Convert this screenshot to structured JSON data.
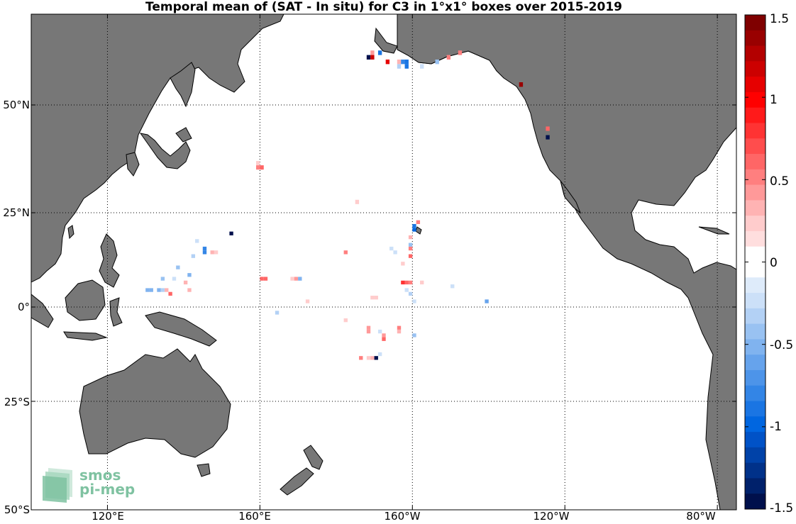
{
  "title": "Temporal mean of (SAT - In situ) for C3 in 1°x1° boxes over 2015-2019",
  "lat_labels": [
    "50°N",
    "25°N",
    "0°",
    "25°S",
    "50°S"
  ],
  "lon_labels": [
    "120°E",
    "160°E",
    "160°W",
    "120°W",
    "80°W"
  ],
  "colorbar": {
    "ticks": [
      "1.5",
      "1",
      "0.5",
      "0",
      "-0.5",
      "-1",
      "-1.5"
    ],
    "range": [
      -1.5,
      1.5
    ],
    "colors_pos": [
      "#ffffff",
      "#ffdede",
      "#ffcccc",
      "#ffb3b3",
      "#ff9999",
      "#ff7f7f",
      "#ff6666",
      "#ff4d4d",
      "#ff3333",
      "#ff1a1a",
      "#ff0000",
      "#e60000",
      "#cc0000",
      "#b30000",
      "#990000",
      "#7f0000"
    ],
    "colors_neg": [
      "#ffffff",
      "#deebfa",
      "#cce0f8",
      "#b3d1f5",
      "#99c2f2",
      "#80b3ef",
      "#66a3ec",
      "#4d94e9",
      "#3385e6",
      "#1a75e3",
      "#0066e0",
      "#0052c7",
      "#0042a8",
      "#003189",
      "#00216b",
      "#00104c"
    ]
  },
  "map": {
    "land_color": "#777777",
    "ocean_color": "#ffffff",
    "grid": true
  },
  "logo": {
    "line1": "smos",
    "line2": "pi-mep"
  },
  "cells": [
    {
      "lon": -170.5,
      "lat": 61.5,
      "v": 0.4
    },
    {
      "lon": -168.5,
      "lat": 61.5,
      "v": -0.9
    },
    {
      "lon": -171.5,
      "lat": 60.5,
      "v": -1.5
    },
    {
      "lon": -170.5,
      "lat": 60.5,
      "v": 1.2
    },
    {
      "lon": -166.5,
      "lat": 59.5,
      "v": 1.1
    },
    {
      "lon": -163.5,
      "lat": 59.5,
      "v": 0.3
    },
    {
      "lon": -162.5,
      "lat": 59.5,
      "v": -0.8
    },
    {
      "lon": -161.5,
      "lat": 59.5,
      "v": -0.9
    },
    {
      "lon": -163.5,
      "lat": 58.5,
      "v": -0.3
    },
    {
      "lon": -161.5,
      "lat": 58.5,
      "v": -0.9
    },
    {
      "lon": -157.5,
      "lat": 58.5,
      "v": -0.2
    },
    {
      "lon": -153.5,
      "lat": 59.5,
      "v": -0.4
    },
    {
      "lon": -150.5,
      "lat": 60.5,
      "v": 0.5
    },
    {
      "lon": -147.5,
      "lat": 61.5,
      "v": 0.5
    },
    {
      "lon": -131.5,
      "lat": 54.5,
      "v": 1.4
    },
    {
      "lon": -124.5,
      "lat": 44.5,
      "v": 0.6
    },
    {
      "lon": -124.5,
      "lat": 42.5,
      "v": -1.5
    },
    {
      "lon": 159.5,
      "lat": 36.5,
      "v": 0.2
    },
    {
      "lon": 159.5,
      "lat": 35.5,
      "v": 0.5
    },
    {
      "lon": 160.5,
      "lat": 35.5,
      "v": 0.6
    },
    {
      "lon": -174.5,
      "lat": 27.5,
      "v": 0.2
    },
    {
      "lon": -158.5,
      "lat": 22.5,
      "v": 0.5
    },
    {
      "lon": -159.5,
      "lat": 21.5,
      "v": -0.9
    },
    {
      "lon": -159.5,
      "lat": 20.5,
      "v": -1.0
    },
    {
      "lon": -160.5,
      "lat": 18.5,
      "v": 0.3
    },
    {
      "lon": -160.5,
      "lat": 16.5,
      "v": -0.4
    },
    {
      "lon": -160.5,
      "lat": 15.5,
      "v": 0.5
    },
    {
      "lon": -160.5,
      "lat": 13.5,
      "v": 0.6
    },
    {
      "lon": -162.5,
      "lat": 11.5,
      "v": 0.2
    },
    {
      "lon": -165.5,
      "lat": 15.5,
      "v": -0.2
    },
    {
      "lon": -164.5,
      "lat": 14.5,
      "v": -0.2
    },
    {
      "lon": -177.5,
      "lat": 14.5,
      "v": 0.5
    },
    {
      "lon": -172.5,
      "lat": 14.5,
      "v": 0.0
    },
    {
      "lon": 152.5,
      "lat": 19.5,
      "v": -1.5
    },
    {
      "lon": 147.5,
      "lat": 14.5,
      "v": 0.3
    },
    {
      "lon": 148.5,
      "lat": 14.5,
      "v": 0.2
    },
    {
      "lon": 143.5,
      "lat": 17.5,
      "v": -0.2
    },
    {
      "lon": 145.5,
      "lat": 15.5,
      "v": -0.8
    },
    {
      "lon": 145.5,
      "lat": 14.5,
      "v": -0.8
    },
    {
      "lon": 142.5,
      "lat": 13.5,
      "v": -0.3
    },
    {
      "lon": 138.5,
      "lat": 10.5,
      "v": -0.4
    },
    {
      "lon": 141.5,
      "lat": 8.5,
      "v": -0.5
    },
    {
      "lon": 134.5,
      "lat": 7.5,
      "v": -0.4
    },
    {
      "lon": 137.5,
      "lat": 7.5,
      "v": -0.2
    },
    {
      "lon": 140.5,
      "lat": 6.5,
      "v": 0.3
    },
    {
      "lon": 130.5,
      "lat": 4.5,
      "v": -0.5
    },
    {
      "lon": 131.5,
      "lat": 4.5,
      "v": -0.5
    },
    {
      "lon": 133.5,
      "lat": 4.5,
      "v": -0.5
    },
    {
      "lon": 134.5,
      "lat": 4.5,
      "v": -0.3
    },
    {
      "lon": 135.5,
      "lat": 4.5,
      "v": 0.3
    },
    {
      "lon": 136.5,
      "lat": 3.5,
      "v": 0.6
    },
    {
      "lon": 141.5,
      "lat": 4.5,
      "v": 0.3
    },
    {
      "lon": 161.5,
      "lat": 7.5,
      "v": 0.6
    },
    {
      "lon": 160.5,
      "lat": 7.5,
      "v": 0.6
    },
    {
      "lon": 168.5,
      "lat": 7.5,
      "v": 0.2
    },
    {
      "lon": 169.5,
      "lat": 7.5,
      "v": 0.4
    },
    {
      "lon": 170.5,
      "lat": 7.5,
      "v": -0.5
    },
    {
      "lon": -161.5,
      "lat": 6.5,
      "v": 0.6
    },
    {
      "lon": -162.5,
      "lat": 6.5,
      "v": 0.8
    },
    {
      "lon": -160.5,
      "lat": 6.5,
      "v": 0.5
    },
    {
      "lon": -157.5,
      "lat": 6.5,
      "v": 0.2
    },
    {
      "lon": -161.5,
      "lat": 4.5,
      "v": -0.2
    },
    {
      "lon": -160.5,
      "lat": 3.5,
      "v": -0.3
    },
    {
      "lon": -159.5,
      "lat": 1.5,
      "v": -0.2
    },
    {
      "lon": -149.5,
      "lat": 5.5,
      "v": -0.2
    },
    {
      "lon": -169.5,
      "lat": 2.5,
      "v": 0.2
    },
    {
      "lon": -170.5,
      "lat": 2.5,
      "v": 0.2
    },
    {
      "lon": -140.5,
      "lat": 1.5,
      "v": -0.6
    },
    {
      "lon": 172.5,
      "lat": 1.5,
      "v": 0.2
    },
    {
      "lon": 164.5,
      "lat": -1.5,
      "v": -0.3
    },
    {
      "lon": -177.5,
      "lat": -3.5,
      "v": 0.2
    },
    {
      "lon": -171.5,
      "lat": -5.5,
      "v": 0.4
    },
    {
      "lon": -171.5,
      "lat": -6.5,
      "v": 0.4
    },
    {
      "lon": -168.5,
      "lat": -6.5,
      "v": -0.2
    },
    {
      "lon": -167.5,
      "lat": -7.5,
      "v": 0.4
    },
    {
      "lon": -167.5,
      "lat": -8.5,
      "v": 0.6
    },
    {
      "lon": -163.5,
      "lat": -5.5,
      "v": 0.5
    },
    {
      "lon": -163.5,
      "lat": -6.5,
      "v": 0.3
    },
    {
      "lon": -159.5,
      "lat": -7.5,
      "v": -0.4
    },
    {
      "lon": -173.5,
      "lat": -13.5,
      "v": 0.5
    },
    {
      "lon": -171.5,
      "lat": -13.5,
      "v": 0.2
    },
    {
      "lon": -170.5,
      "lat": -13.5,
      "v": 0.3
    },
    {
      "lon": -169.5,
      "lat": -13.5,
      "v": -1.5
    },
    {
      "lon": -168.5,
      "lat": -12.5,
      "v": -0.2
    }
  ]
}
